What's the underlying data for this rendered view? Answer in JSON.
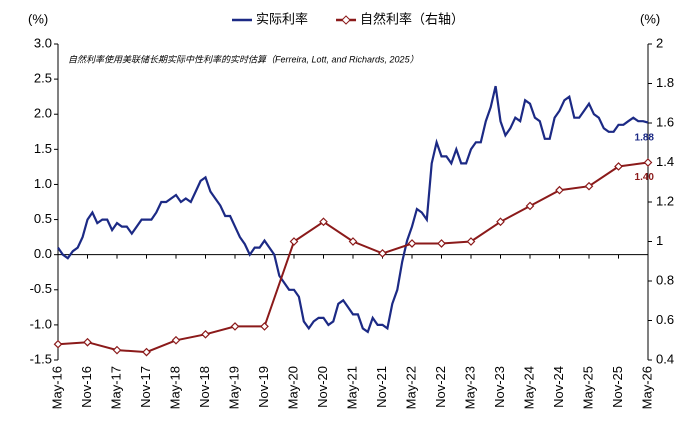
{
  "chart_data": {
    "type": "line",
    "annotation": "自然利率使用美联储长期实际中性利率的实时估算（Ferreira, Lott, and Richards, 2025）",
    "y_unit": "(%)",
    "y2_unit": "(%)",
    "x": [
      "May-16",
      "Jun-16",
      "Jul-16",
      "Aug-16",
      "Sep-16",
      "Oct-16",
      "Nov-16",
      "Dec-16",
      "Jan-17",
      "Feb-17",
      "Mar-17",
      "Apr-17",
      "May-17",
      "Jun-17",
      "Jul-17",
      "Aug-17",
      "Sep-17",
      "Oct-17",
      "Nov-17",
      "Dec-17",
      "Jan-18",
      "Feb-18",
      "Mar-18",
      "Apr-18",
      "May-18",
      "Jun-18",
      "Jul-18",
      "Aug-18",
      "Sep-18",
      "Oct-18",
      "Nov-18",
      "Dec-18",
      "Jan-19",
      "Feb-19",
      "Mar-19",
      "Apr-19",
      "May-19",
      "Jun-19",
      "Jul-19",
      "Aug-19",
      "Sep-19",
      "Oct-19",
      "Nov-19",
      "Dec-19",
      "Jan-20",
      "Feb-20",
      "Mar-20",
      "Apr-20",
      "May-20",
      "Jun-20",
      "Jul-20",
      "Aug-20",
      "Sep-20",
      "Oct-20",
      "Nov-20",
      "Dec-20",
      "Jan-21",
      "Feb-21",
      "Mar-21",
      "Apr-21",
      "May-21",
      "Jun-21",
      "Jul-21",
      "Aug-21",
      "Sep-21",
      "Oct-21",
      "Nov-21",
      "Dec-21",
      "Jan-22",
      "Feb-22",
      "Mar-22",
      "Apr-22",
      "May-22",
      "Jun-22",
      "Jul-22",
      "Aug-22",
      "Sep-22",
      "Oct-22",
      "Nov-22",
      "Dec-22",
      "Jan-23",
      "Feb-23",
      "Mar-23",
      "Apr-23",
      "May-23",
      "Jun-23",
      "Jul-23",
      "Aug-23",
      "Sep-23",
      "Oct-23",
      "Nov-23",
      "Dec-23",
      "Jan-24",
      "Feb-24",
      "Mar-24",
      "Apr-24",
      "May-24",
      "Jun-24",
      "Jul-24",
      "Aug-24",
      "Sep-24",
      "Oct-24",
      "Nov-24",
      "Dec-24",
      "Jan-25",
      "Feb-25",
      "Mar-25",
      "Apr-25",
      "May-25",
      "Jun-25",
      "Jul-25",
      "Aug-25",
      "Sep-25",
      "Oct-25",
      "Nov-25",
      "Dec-25",
      "Jan-26",
      "Feb-26",
      "Mar-26",
      "Apr-26",
      "May-26"
    ],
    "series": [
      {
        "name": "实际利率",
        "color": "#1c2a85",
        "axis": "y",
        "values": [
          0.1,
          0.0,
          -0.05,
          0.05,
          0.1,
          0.25,
          0.5,
          0.6,
          0.45,
          0.5,
          0.5,
          0.35,
          0.45,
          0.4,
          0.4,
          0.3,
          0.4,
          0.5,
          0.5,
          0.5,
          0.6,
          0.75,
          0.75,
          0.8,
          0.85,
          0.75,
          0.8,
          0.75,
          0.9,
          1.05,
          1.1,
          0.9,
          0.8,
          0.7,
          0.55,
          0.55,
          0.4,
          0.25,
          0.15,
          0.0,
          0.1,
          0.1,
          0.2,
          0.1,
          0.0,
          -0.3,
          -0.4,
          -0.5,
          -0.5,
          -0.6,
          -0.95,
          -1.05,
          -0.95,
          -0.9,
          -0.9,
          -1.0,
          -0.95,
          -0.7,
          -0.65,
          -0.75,
          -0.85,
          -0.85,
          -1.05,
          -1.1,
          -0.9,
          -1.0,
          -1.0,
          -1.05,
          -0.7,
          -0.5,
          -0.1,
          0.2,
          0.4,
          0.65,
          0.6,
          0.5,
          1.3,
          1.6,
          1.4,
          1.4,
          1.3,
          1.5,
          1.3,
          1.3,
          1.5,
          1.6,
          1.6,
          1.9,
          2.1,
          2.4,
          1.9,
          1.7,
          1.8,
          1.95,
          1.9,
          2.2,
          2.15,
          1.95,
          1.9,
          1.65,
          1.65,
          1.95,
          2.05,
          2.2,
          2.25,
          1.95,
          1.95,
          2.05,
          2.15,
          2.0,
          1.95,
          1.8,
          1.75,
          1.75,
          1.85,
          1.85,
          1.9,
          1.95,
          1.9,
          1.9,
          1.88
        ],
        "value_labels": [
          null,
          null,
          null,
          null,
          null,
          null,
          null,
          null,
          null,
          null,
          null,
          null,
          null,
          null,
          null,
          null,
          null,
          null,
          null,
          null,
          null,
          null,
          null,
          null,
          null,
          null,
          null,
          null,
          null,
          null,
          null,
          null,
          null,
          null,
          null,
          null,
          null,
          null,
          null,
          null,
          null,
          null,
          null,
          null,
          null,
          null,
          null,
          null,
          null,
          null,
          null,
          null,
          null,
          null,
          null,
          null,
          null,
          null,
          null,
          null,
          null,
          null,
          null,
          null,
          null,
          null,
          null,
          null,
          null,
          null,
          null,
          null,
          null,
          null,
          null,
          null,
          null,
          null,
          null,
          null,
          null,
          null,
          null,
          null,
          null,
          null,
          null,
          null,
          null,
          null,
          null,
          null,
          null,
          null,
          null,
          null,
          null,
          null,
          null,
          null,
          null,
          null,
          null,
          null,
          null,
          null,
          null,
          null,
          null,
          null,
          null,
          null,
          null,
          null,
          null,
          null,
          null,
          null,
          null,
          null,
          "1.88"
        ]
      },
      {
        "name": "自然利率（右轴）",
        "color": "#8b1a1a",
        "axis": "y2",
        "x": [
          "May-16",
          "Nov-16",
          "May-17",
          "Nov-17",
          "May-18",
          "Nov-18",
          "May-19",
          "Nov-19",
          "May-20",
          "Nov-20",
          "May-21",
          "Nov-21",
          "May-22",
          "Nov-22",
          "May-23",
          "Nov-23",
          "May-24",
          "Nov-24",
          "May-25",
          "Nov-25",
          "May-26"
        ],
        "values": [
          0.48,
          0.49,
          0.45,
          0.44,
          0.5,
          0.53,
          0.57,
          0.57,
          1.0,
          1.1,
          1.0,
          0.94,
          0.99,
          0.99,
          1.0,
          1.1,
          1.18,
          1.26,
          1.28,
          1.38,
          1.4
        ],
        "value_labels": [
          null,
          null,
          null,
          null,
          null,
          null,
          null,
          null,
          null,
          null,
          null,
          null,
          null,
          null,
          null,
          null,
          null,
          null,
          null,
          null,
          "1.40"
        ]
      }
    ],
    "ylim": [
      -1.5,
      3
    ],
    "yticks": [
      {
        "value": 3,
        "label": "3.0"
      },
      2.5,
      {
        "value": 2,
        "label": "2.0"
      },
      1.5,
      {
        "value": 1,
        "label": "1.0"
      },
      0.5,
      {
        "value": 0,
        "label": "0.0"
      },
      -0.5,
      {
        "value": -1,
        "label": "-1.0"
      },
      -1.5
    ],
    "y2lim": [
      0.4,
      2
    ],
    "y2ticks": [
      2,
      1.8,
      1.6,
      1.4,
      1.2,
      1,
      0.8,
      0.6,
      0.4
    ],
    "legend": "top"
  }
}
